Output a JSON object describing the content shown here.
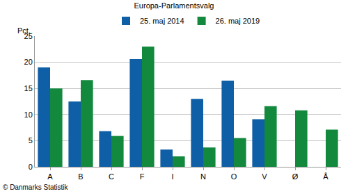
{
  "chart_data": {
    "type": "bar",
    "title": "Europa-Parlamentsvalg",
    "y_label": "Pct.",
    "source": "© Danmarks Statistik",
    "categories": [
      "A",
      "B",
      "C",
      "F",
      "I",
      "N",
      "O",
      "V",
      "Ø",
      "Å"
    ],
    "series": [
      {
        "name": "25. maj 2014",
        "color": "#0f5fa6",
        "values": [
          19.0,
          12.5,
          6.8,
          20.6,
          3.3,
          13.0,
          16.5,
          9.1,
          null,
          null
        ]
      },
      {
        "name": "26. maj 2019",
        "color": "#12893d",
        "values": [
          15.0,
          16.6,
          5.9,
          23.0,
          2.0,
          3.7,
          5.5,
          11.6,
          10.8,
          7.1
        ]
      }
    ],
    "ylim": [
      0,
      25
    ],
    "yticks": [
      0,
      5,
      10,
      15,
      20,
      25
    ],
    "grid": true,
    "legend": "top"
  }
}
